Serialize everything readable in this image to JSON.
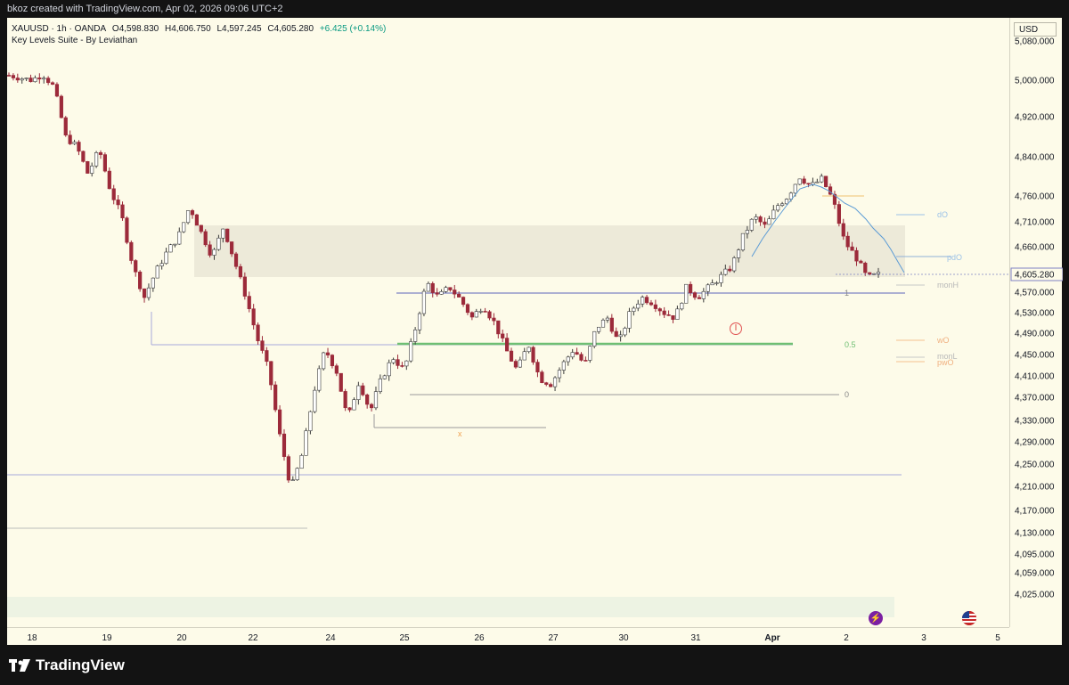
{
  "header": {
    "credit": "bkoz created with TradingView.com, Apr 02, 2026 09:06 UTC+2"
  },
  "legend": {
    "symbol": "XAUUSD · 1h · OANDA",
    "open": "O4,598.830",
    "high": "H4,606.750",
    "low": "L4,597.245",
    "close": "C4,605.280",
    "change": "+6.425 (+0.14%)",
    "indicator": "Key Levels Suite - By Leviathan"
  },
  "currency": "USD",
  "footer": {
    "brand": "TradingView"
  },
  "colors": {
    "background": "#fdfbe9",
    "bull_fill": "#ffffff",
    "bear_fill": "#9c2a3a",
    "candle_outline": "#3a3a3a",
    "level_line": "#9c9fd6",
    "zone": "#e8e6d4",
    "fib_green": "#6fbf73",
    "vwap_blue": "#5b9bd5",
    "orange": "#f0a050"
  },
  "chart_data": {
    "type": "candlestick",
    "title": "XAUUSD · 1h · OANDA",
    "x_ticks": [
      "18",
      "19",
      "20",
      "22",
      "24",
      "25",
      "26",
      "27",
      "30",
      "31",
      "Apr",
      "2",
      "3",
      "5"
    ],
    "y_ticks": [
      "5,080.000",
      "5,000.000",
      "4,920.000",
      "4,840.000",
      "4,760.000",
      "4,710.000",
      "4,660.000",
      "4,605.280",
      "4,570.000",
      "4,530.000",
      "4,490.000",
      "4,450.000",
      "4,410.000",
      "4,370.000",
      "4,330.000",
      "4,290.000",
      "4,250.000",
      "4,210.000",
      "4,170.000",
      "4,130.000",
      "4,095.000",
      "4,059.000",
      "4,025.000"
    ],
    "last_price": "4,605.280",
    "level_labels": [
      "dO",
      "pdO",
      "monH",
      "wO",
      "monL",
      "pwO"
    ],
    "fib_labels": [
      "1",
      "0.5",
      "0"
    ],
    "annotation_x": "x",
    "path": [
      5010,
      5005,
      5000,
      5012,
      4985,
      4880,
      4860,
      4805,
      4855,
      4770,
      4720,
      4620,
      4560,
      4610,
      4650,
      4680,
      4740,
      4690,
      4640,
      4700,
      4630,
      4560,
      4480,
      4420,
      4300,
      4205,
      4270,
      4380,
      4460,
      4420,
      4330,
      4400,
      4345,
      4405,
      4445,
      4420,
      4500,
      4590,
      4560,
      4580,
      4555,
      4520,
      4545,
      4510,
      4460,
      4420,
      4470,
      4405,
      4395,
      4430,
      4460,
      4430,
      4500,
      4520,
      4470,
      4530,
      4560,
      4550,
      4530,
      4520,
      4580,
      4560,
      4580,
      4600,
      4620,
      4680,
      4720,
      4700,
      4740,
      4760,
      4800,
      4780,
      4795,
      4750,
      4670,
      4640,
      4598,
      4605
    ]
  }
}
